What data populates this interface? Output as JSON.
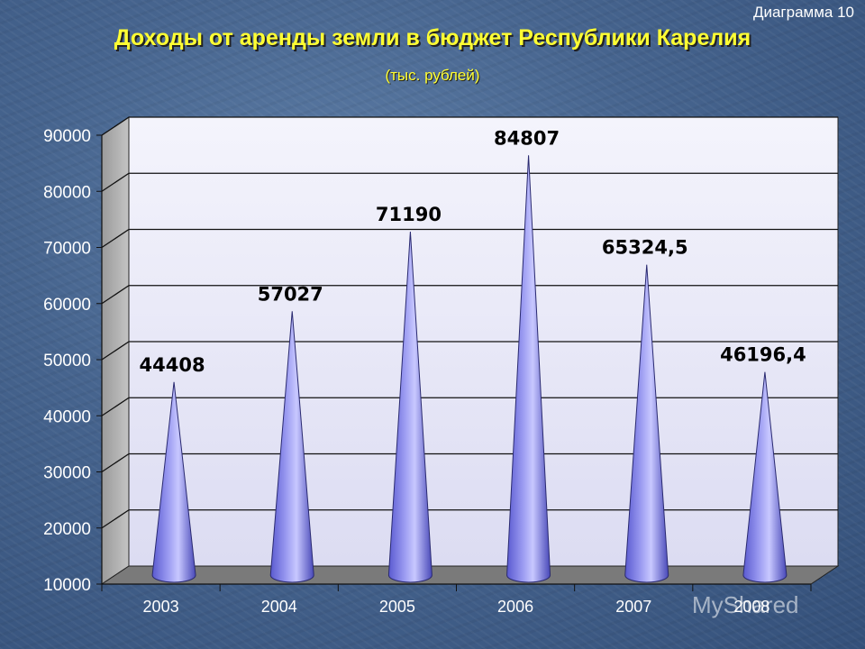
{
  "slide_label": "Диаграмма 10",
  "title": "Доходы от аренды земли в бюджет Республики Карелия",
  "subtitle": "(тыс. рублей)",
  "watermark": "MyShared",
  "colors": {
    "title": "#ffff33",
    "cone_light": "#c8c8ff",
    "cone_dark": "#4040b0",
    "wall": "#e8e8f8",
    "floor": "#7a7a7a"
  },
  "chart_data": {
    "type": "bar",
    "bar_shape": "cone",
    "title": "Доходы от аренды земли в бюджет Республики Карелия",
    "subtitle": "(тыс. рублей)",
    "categories": [
      "2003",
      "2004",
      "2005",
      "2006",
      "2007",
      "2008"
    ],
    "values": [
      44408,
      57027,
      71190,
      84807,
      65324.5,
      46196.4
    ],
    "data_labels": [
      "44408",
      "57027",
      "71190",
      "84807",
      "65324,5",
      "46196,4"
    ],
    "yticks": [
      "10000",
      "20000",
      "30000",
      "40000",
      "50000",
      "60000",
      "70000",
      "80000",
      "90000"
    ],
    "ylim": [
      10000,
      90000
    ],
    "grid": true,
    "legend": "none"
  }
}
